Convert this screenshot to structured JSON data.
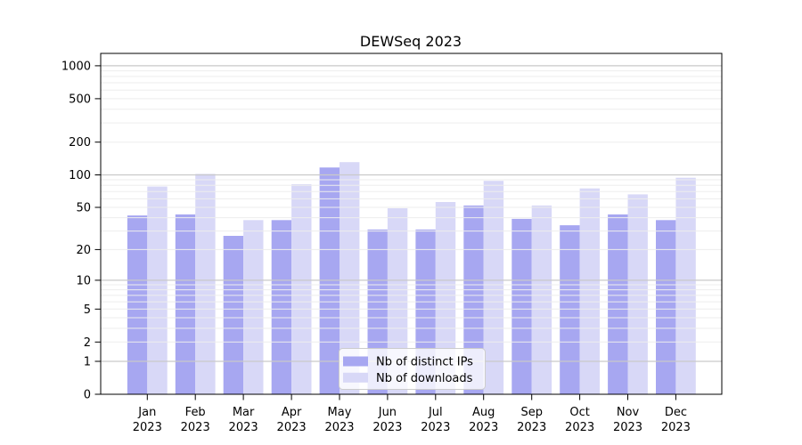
{
  "chart_data": {
    "type": "bar",
    "title": "DEWSeq 2023",
    "year": "2023",
    "categories": [
      "Jan",
      "Feb",
      "Mar",
      "Apr",
      "May",
      "Jun",
      "Jul",
      "Aug",
      "Sep",
      "Oct",
      "Nov",
      "Dec"
    ],
    "x_tick_labels": [
      "Jan\n2023",
      "Feb\n2023",
      "Mar\n2023",
      "Apr\n2023",
      "May\n2023",
      "Jun\n2023",
      "Jul\n2023",
      "Aug\n2023",
      "Sep\n2023",
      "Oct\n2023",
      "Nov\n2023",
      "Dec\n2023"
    ],
    "series": [
      {
        "name": "Nb of distinct IPs",
        "color": "#a7a7f1",
        "values": [
          42,
          43,
          27,
          38,
          117,
          31,
          31,
          52,
          39,
          34,
          43,
          38
        ]
      },
      {
        "name": "Nb of downloads",
        "color": "#d8d8f7",
        "values": [
          78,
          102,
          38,
          82,
          131,
          49,
          56,
          88,
          52,
          75,
          66,
          94
        ]
      }
    ],
    "y_scale": "log10(1+y)",
    "y_ticks": [
      0,
      1,
      2,
      5,
      10,
      20,
      50,
      100,
      200,
      500,
      1000
    ],
    "y_major_gridlines": [
      1,
      10,
      100,
      1000
    ],
    "y_minor_gridlines": [
      2,
      3,
      4,
      5,
      6,
      7,
      8,
      9,
      20,
      30,
      40,
      50,
      60,
      70,
      80,
      90,
      200,
      300,
      400,
      500,
      600,
      700,
      800,
      900
    ],
    "ylim": [
      0,
      1320
    ],
    "grid": true,
    "legend_position": "lower center inside plot",
    "colors": {
      "axis": "#000000",
      "grid_major": "#c9c9c9",
      "grid_minor": "#ededed",
      "background": "#ffffff"
    }
  }
}
